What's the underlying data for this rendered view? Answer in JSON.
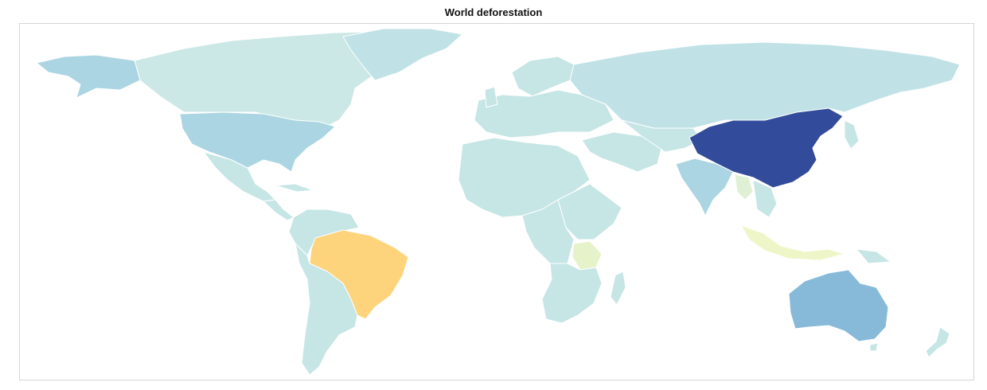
{
  "title": "World deforestation",
  "chart_data": {
    "type": "choropleth",
    "title": "World deforestation",
    "legend": "none",
    "default_color": "#c6e5e5",
    "regions": [
      {
        "name": "China",
        "color": "#334b9b"
      },
      {
        "name": "Brazil",
        "color": "#fdd37b"
      },
      {
        "name": "Australia",
        "color": "#87b9d8"
      },
      {
        "name": "United States",
        "color": "#abd5e2"
      },
      {
        "name": "Alaska",
        "color": "#abd5e2"
      },
      {
        "name": "India",
        "color": "#abd5e2"
      },
      {
        "name": "Indonesia",
        "color": "#eef6c8"
      },
      {
        "name": "Zambia",
        "color": "#e6f2ca"
      },
      {
        "name": "Myanmar",
        "color": "#dff0d4"
      },
      {
        "name": "Russia",
        "color": "#c0e2e6"
      },
      {
        "name": "Canada",
        "color": "#cbe8e6"
      },
      {
        "name": "Greenland",
        "color": "#c0e2e6"
      }
    ]
  }
}
